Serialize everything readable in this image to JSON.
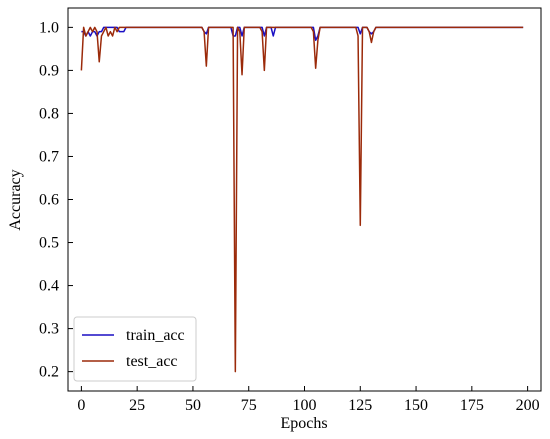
{
  "chart_data": {
    "type": "line",
    "xlabel": "Epochs",
    "ylabel": "Accuracy",
    "x": [
      0,
      1,
      2,
      3,
      4,
      5,
      6,
      7,
      8,
      9,
      10,
      11,
      12,
      13,
      14,
      15,
      16,
      17,
      18,
      19,
      20,
      21,
      22,
      23,
      24,
      25,
      26,
      27,
      28,
      29,
      30,
      31,
      32,
      33,
      34,
      35,
      36,
      37,
      38,
      39,
      40,
      41,
      42,
      43,
      44,
      45,
      46,
      47,
      48,
      49,
      50,
      51,
      52,
      53,
      54,
      55,
      56,
      57,
      58,
      59,
      60,
      61,
      62,
      63,
      64,
      65,
      66,
      67,
      68,
      69,
      70,
      71,
      72,
      73,
      74,
      75,
      76,
      77,
      78,
      79,
      80,
      81,
      82,
      83,
      84,
      85,
      86,
      87,
      88,
      89,
      90,
      91,
      92,
      93,
      94,
      95,
      96,
      97,
      98,
      99,
      100,
      101,
      102,
      103,
      104,
      105,
      106,
      107,
      108,
      109,
      110,
      111,
      112,
      113,
      114,
      115,
      116,
      117,
      118,
      119,
      120,
      121,
      122,
      123,
      124,
      125,
      126,
      127,
      128,
      129,
      130,
      131,
      132,
      133,
      134,
      135,
      136,
      137,
      138,
      139,
      140,
      141,
      142,
      143,
      144,
      145,
      146,
      147,
      148,
      149,
      150,
      151,
      152,
      153,
      154,
      155,
      156,
      157,
      158,
      159,
      160,
      161,
      162,
      163,
      164,
      165,
      166,
      167,
      168,
      169,
      170,
      171,
      172,
      173,
      174,
      175,
      176,
      177,
      178,
      179,
      180,
      181,
      182,
      183,
      184,
      185,
      186,
      187,
      188,
      189,
      190,
      191,
      192,
      193,
      194,
      195,
      196,
      197,
      198
    ],
    "series": [
      {
        "name": "train_acc",
        "color": "#1a0fc4",
        "values": [
          0.99,
          0.99,
          0.98,
          0.99,
          0.98,
          0.99,
          0.99,
          0.98,
          0.99,
          0.99,
          1,
          1,
          1,
          1,
          1,
          1,
          1,
          0.99,
          0.99,
          0.99,
          1,
          1,
          1,
          1,
          1,
          1,
          1,
          1,
          1,
          1,
          1,
          1,
          1,
          1,
          1,
          1,
          1,
          1,
          1,
          1,
          1,
          1,
          1,
          1,
          1,
          1,
          1,
          1,
          1,
          1,
          1,
          1,
          1,
          1,
          1,
          0.99,
          0.985,
          1,
          1,
          1,
          1,
          1,
          1,
          1,
          1,
          1,
          1,
          1,
          0.98,
          0.98,
          1,
          1,
          0.98,
          1,
          1,
          1,
          1,
          1,
          1,
          1,
          1,
          1,
          0.98,
          1,
          1,
          1,
          0.98,
          1,
          1,
          1,
          1,
          1,
          1,
          1,
          1,
          1,
          1,
          1,
          1,
          1,
          1,
          1,
          1,
          1,
          1,
          0.97,
          0.98,
          1,
          1,
          1,
          1,
          1,
          1,
          1,
          1,
          1,
          1,
          1,
          1,
          1,
          1,
          1,
          1,
          1,
          1,
          0.985,
          1,
          1,
          1,
          0.99,
          0.985,
          0.99,
          1,
          1,
          1,
          1,
          1,
          1,
          1,
          1,
          1,
          1,
          1,
          1,
          1,
          1,
          1,
          1,
          1,
          1,
          1,
          1,
          1,
          1,
          1,
          1,
          1,
          1,
          1,
          1,
          1,
          1,
          1,
          1,
          1,
          1,
          1,
          1,
          1,
          1,
          1,
          1,
          1,
          1,
          1,
          1,
          1,
          1,
          1,
          1,
          1,
          1,
          1,
          1,
          1,
          1,
          1,
          1,
          1,
          1,
          1,
          1,
          1,
          1,
          1,
          1,
          1,
          1,
          1
        ]
      },
      {
        "name": "test_acc",
        "color": "#9b2a0a",
        "values": [
          0.9,
          1,
          0.98,
          0.99,
          1,
          0.99,
          1,
          0.99,
          0.92,
          0.98,
          0.99,
          1,
          0.98,
          0.99,
          0.98,
          1,
          0.99,
          1,
          1,
          1,
          1,
          1,
          1,
          1,
          1,
          1,
          1,
          1,
          1,
          1,
          1,
          1,
          1,
          1,
          1,
          1,
          1,
          1,
          1,
          1,
          1,
          1,
          1,
          1,
          1,
          1,
          1,
          1,
          1,
          1,
          1,
          1,
          1,
          1,
          1,
          0.99,
          0.91,
          1,
          1,
          1,
          1,
          1,
          1,
          1,
          1,
          1,
          1,
          1,
          1,
          0.2,
          1,
          0.99,
          0.89,
          1,
          1,
          1,
          1,
          1,
          1,
          1,
          1,
          0.99,
          0.9,
          1,
          1,
          1,
          1,
          1,
          1,
          1,
          1,
          1,
          1,
          1,
          1,
          1,
          1,
          1,
          1,
          1,
          1,
          1,
          1,
          1,
          0.99,
          0.905,
          0.97,
          1,
          1,
          1,
          1,
          1,
          1,
          1,
          1,
          1,
          1,
          1,
          1,
          1,
          1,
          1,
          1,
          1,
          0.98,
          0.54,
          1,
          1,
          1,
          0.99,
          0.965,
          0.99,
          1,
          1,
          1,
          1,
          1,
          1,
          1,
          1,
          1,
          1,
          1,
          1,
          1,
          1,
          1,
          1,
          1,
          1,
          1,
          1,
          1,
          1,
          1,
          1,
          1,
          1,
          1,
          1,
          1,
          1,
          1,
          1,
          1,
          1,
          1,
          1,
          1,
          1,
          1,
          1,
          1,
          1,
          1,
          1,
          1,
          1,
          1,
          1,
          1,
          1,
          1,
          1,
          1,
          1,
          1,
          1,
          1,
          1,
          1,
          1,
          1,
          1,
          1,
          1,
          1,
          1,
          1
        ]
      }
    ],
    "xlim": [
      -6,
      206
    ],
    "xticks": [
      0,
      25,
      50,
      75,
      100,
      125,
      150,
      175,
      200
    ],
    "ylim": [
      0.155,
      1.045
    ],
    "yticks": [
      0.2,
      0.3,
      0.4,
      0.5,
      0.6,
      0.7,
      0.8,
      0.9,
      {
        "value": 1,
        "label": "1.0"
      }
    ],
    "legend": "lower left",
    "grid": false
  }
}
